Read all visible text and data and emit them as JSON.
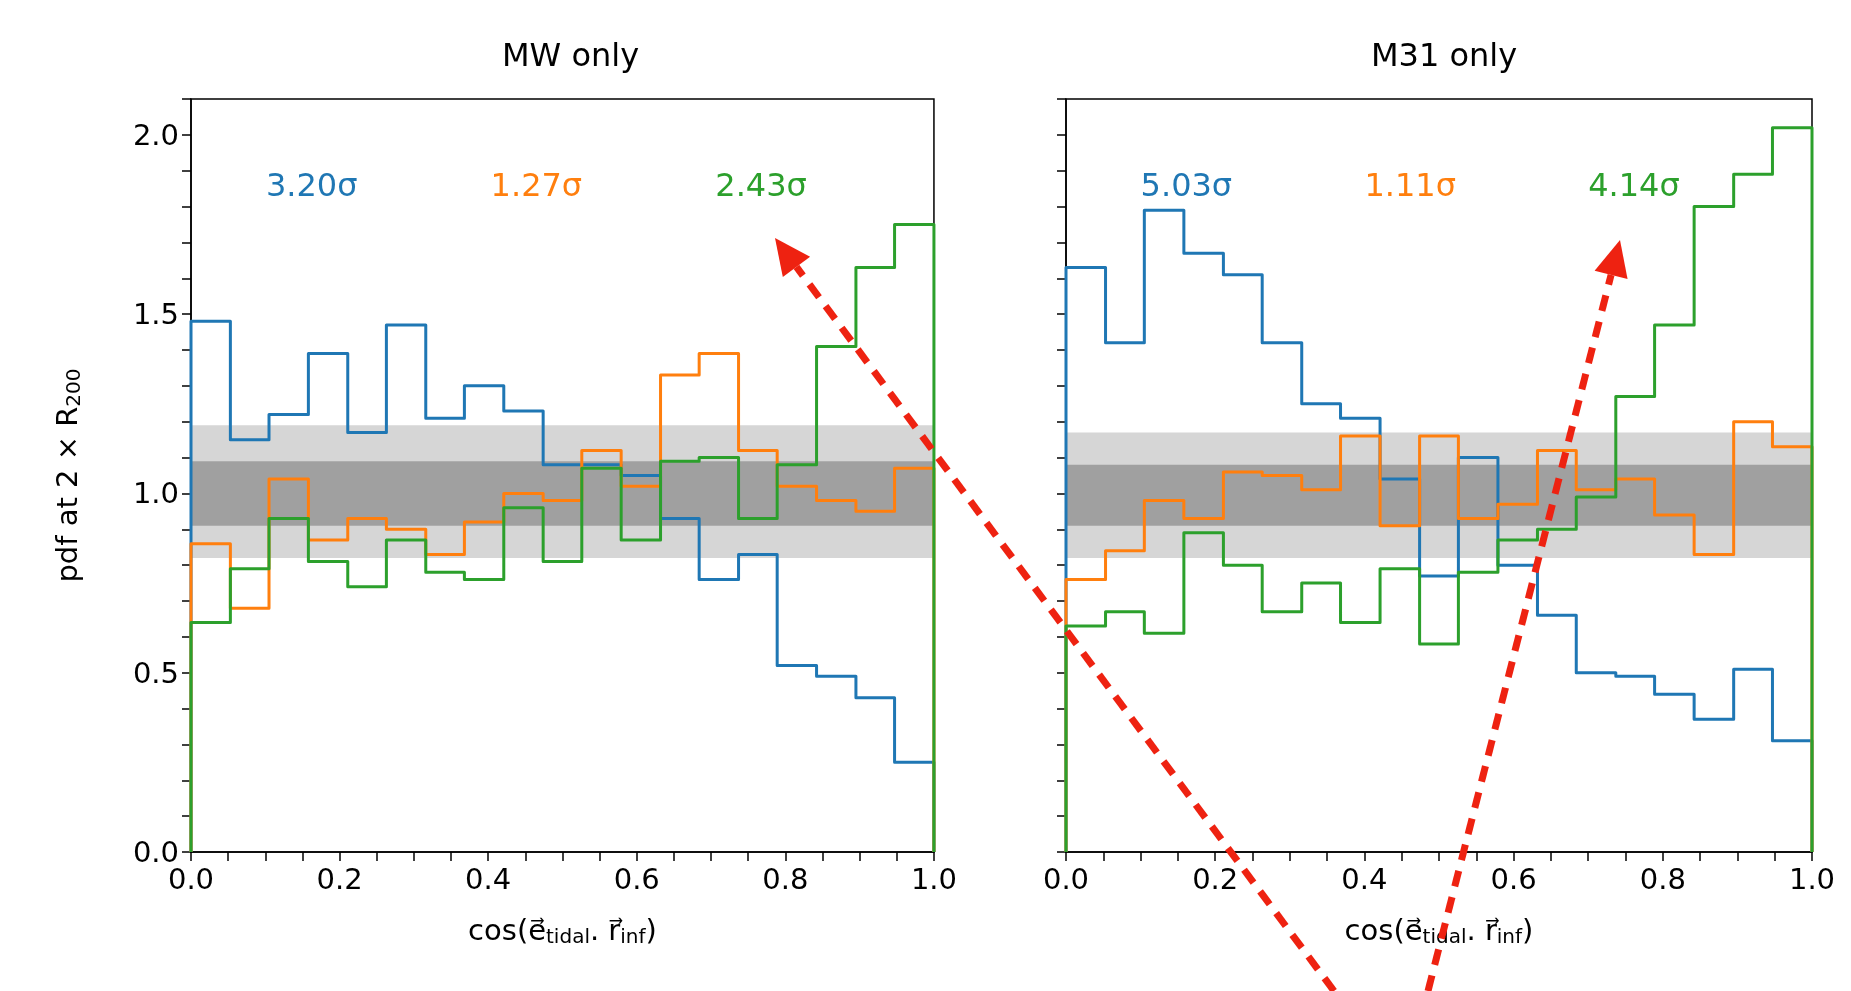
{
  "chart_data": [
    {
      "type": "histogram",
      "title": "MW only",
      "xlabel": "cos(e⃗$_{tidal}$. r⃗$_{inf}$)",
      "ylabel": "pdf at 2 × R$_{200}$",
      "bins": [
        0,
        0.053,
        0.105,
        0.158,
        0.211,
        0.263,
        0.316,
        0.368,
        0.421,
        0.474,
        0.526,
        0.579,
        0.632,
        0.684,
        0.737,
        0.789,
        0.842,
        0.895,
        0.947,
        1
      ],
      "series": [
        {
          "color": "#1f77b4",
          "values": [
            1.48,
            1.15,
            1.22,
            1.39,
            1.17,
            1.47,
            1.21,
            1.3,
            1.23,
            1.08,
            1.08,
            1.05,
            0.93,
            0.76,
            0.83,
            0.52,
            0.49,
            0.43,
            0.25
          ]
        },
        {
          "color": "#ff7f0e",
          "values": [
            0.86,
            0.68,
            1.04,
            0.87,
            0.93,
            0.9,
            0.83,
            0.92,
            1.0,
            0.98,
            1.12,
            1.02,
            1.33,
            1.39,
            1.12,
            1.02,
            0.98,
            0.95,
            1.07
          ]
        },
        {
          "color": "#2ca02c",
          "values": [
            0.64,
            0.79,
            0.93,
            0.81,
            0.74,
            0.87,
            0.78,
            0.76,
            0.96,
            0.81,
            1.07,
            0.87,
            1.09,
            1.1,
            0.93,
            1.08,
            1.41,
            1.63,
            1.75
          ]
        }
      ],
      "bands": [
        {
          "axis": "y",
          "from": 0.82,
          "to": 1.19,
          "color": "#d6d6d6"
        },
        {
          "axis": "y",
          "from": 0.91,
          "to": 1.09,
          "color": "#a0a0a0"
        }
      ],
      "annotations": [
        "3.20σ",
        "1.27σ",
        "2.43σ"
      ],
      "xlim": [
        0,
        1
      ],
      "ylim": [
        0,
        2.1
      ],
      "xticks": [
        {
          "value": 0,
          "label": "0.0"
        },
        {
          "value": 0.05,
          "label": null
        },
        {
          "value": 0.1,
          "label": null
        },
        {
          "value": 0.15,
          "label": null
        },
        {
          "value": 0.2,
          "label": "0.2"
        },
        {
          "value": 0.25,
          "label": null
        },
        {
          "value": 0.3,
          "label": null
        },
        {
          "value": 0.35,
          "label": null
        },
        {
          "value": 0.4,
          "label": "0.4"
        },
        {
          "value": 0.45,
          "label": null
        },
        {
          "value": 0.5,
          "label": null
        },
        {
          "value": 0.55,
          "label": null
        },
        {
          "value": 0.6,
          "label": "0.6"
        },
        {
          "value": 0.65,
          "label": null
        },
        {
          "value": 0.7,
          "label": null
        },
        {
          "value": 0.75,
          "label": null
        },
        {
          "value": 0.8,
          "label": "0.8"
        },
        {
          "value": 0.85,
          "label": null
        },
        {
          "value": 0.9,
          "label": null
        },
        {
          "value": 0.95,
          "label": null
        },
        {
          "value": 1,
          "label": "1.0"
        }
      ],
      "yticks": [
        {
          "value": 0,
          "label": "0.0"
        },
        {
          "value": 0.1,
          "label": null
        },
        {
          "value": 0.2,
          "label": null
        },
        {
          "value": 0.3,
          "label": null
        },
        {
          "value": 0.4,
          "label": null
        },
        {
          "value": 0.5,
          "label": "0.5"
        },
        {
          "value": 0.6,
          "label": null
        },
        {
          "value": 0.7,
          "label": null
        },
        {
          "value": 0.8,
          "label": null
        },
        {
          "value": 0.9,
          "label": null
        },
        {
          "value": 1,
          "label": "1.0"
        },
        {
          "value": 1.1,
          "label": null
        },
        {
          "value": 1.2,
          "label": null
        },
        {
          "value": 1.3,
          "label": null
        },
        {
          "value": 1.4,
          "label": null
        },
        {
          "value": 1.5,
          "label": "1.5"
        },
        {
          "value": 1.6,
          "label": null
        },
        {
          "value": 1.7,
          "label": null
        },
        {
          "value": 1.8,
          "label": null
        },
        {
          "value": 1.9,
          "label": null
        },
        {
          "value": 2,
          "label": "2.0"
        },
        {
          "value": 2.1,
          "label": null
        }
      ]
    },
    {
      "type": "histogram",
      "title": "M31 only",
      "xlabel": "cos(e⃗$_{tidal}$. r⃗$_{inf}$)",
      "tick_labels": "x",
      "bins": [
        0,
        0.053,
        0.105,
        0.158,
        0.211,
        0.263,
        0.316,
        0.368,
        0.421,
        0.474,
        0.526,
        0.579,
        0.632,
        0.684,
        0.737,
        0.789,
        0.842,
        0.895,
        0.947,
        1
      ],
      "series": [
        {
          "color": "#1f77b4",
          "values": [
            1.63,
            1.42,
            1.79,
            1.67,
            1.61,
            1.42,
            1.25,
            1.21,
            1.04,
            0.77,
            1.1,
            0.8,
            0.66,
            0.5,
            0.49,
            0.44,
            0.37,
            0.51,
            0.31
          ]
        },
        {
          "color": "#ff7f0e",
          "values": [
            0.76,
            0.84,
            0.98,
            0.93,
            1.06,
            1.05,
            1.01,
            1.16,
            0.91,
            1.16,
            0.93,
            0.97,
            1.12,
            1.01,
            1.04,
            0.94,
            0.83,
            1.2,
            1.13
          ]
        },
        {
          "color": "#2ca02c",
          "values": [
            0.63,
            0.67,
            0.61,
            0.89,
            0.8,
            0.67,
            0.75,
            0.64,
            0.79,
            0.58,
            0.78,
            0.87,
            0.9,
            0.99,
            1.27,
            1.47,
            1.8,
            1.89,
            2.02
          ]
        }
      ],
      "bands": [
        {
          "axis": "y",
          "from": 0.82,
          "to": 1.17,
          "color": "#d6d6d6"
        },
        {
          "axis": "y",
          "from": 0.91,
          "to": 1.08,
          "color": "#a0a0a0"
        }
      ],
      "annotations": [
        "5.03σ",
        "1.11σ",
        "4.14σ"
      ],
      "xlim": [
        0,
        1
      ],
      "ylim": [
        0,
        2.1
      ],
      "xticks": [
        {
          "value": 0,
          "label": "0.0"
        },
        {
          "value": 0.05,
          "label": null
        },
        {
          "value": 0.1,
          "label": null
        },
        {
          "value": 0.15,
          "label": null
        },
        {
          "value": 0.2,
          "label": "0.2"
        },
        {
          "value": 0.25,
          "label": null
        },
        {
          "value": 0.3,
          "label": null
        },
        {
          "value": 0.35,
          "label": null
        },
        {
          "value": 0.4,
          "label": "0.4"
        },
        {
          "value": 0.45,
          "label": null
        },
        {
          "value": 0.5,
          "label": null
        },
        {
          "value": 0.55,
          "label": null
        },
        {
          "value": 0.6,
          "label": "0.6"
        },
        {
          "value": 0.65,
          "label": null
        },
        {
          "value": 0.7,
          "label": null
        },
        {
          "value": 0.75,
          "label": null
        },
        {
          "value": 0.8,
          "label": "0.8"
        },
        {
          "value": 0.85,
          "label": null
        },
        {
          "value": 0.9,
          "label": null
        },
        {
          "value": 0.95,
          "label": null
        },
        {
          "value": 1,
          "label": "1.0"
        }
      ],
      "yticks": [
        {
          "value": 0,
          "label": null
        },
        {
          "value": 0.1,
          "label": null
        },
        {
          "value": 0.2,
          "label": null
        },
        {
          "value": 0.3,
          "label": null
        },
        {
          "value": 0.4,
          "label": null
        },
        {
          "value": 0.5,
          "label": null
        },
        {
          "value": 0.6,
          "label": null
        },
        {
          "value": 0.7,
          "label": null
        },
        {
          "value": 0.8,
          "label": null
        },
        {
          "value": 0.9,
          "label": null
        },
        {
          "value": 1,
          "label": null
        },
        {
          "value": 1.1,
          "label": null
        },
        {
          "value": 1.2,
          "label": null
        },
        {
          "value": 1.3,
          "label": null
        },
        {
          "value": 1.4,
          "label": null
        },
        {
          "value": 1.5,
          "label": null
        },
        {
          "value": 1.6,
          "label": null
        },
        {
          "value": 1.7,
          "label": null
        },
        {
          "value": 1.8,
          "label": null
        },
        {
          "value": 1.9,
          "label": null
        },
        {
          "value": 2,
          "label": null
        },
        {
          "value": 2.1,
          "label": null
        }
      ]
    }
  ]
}
